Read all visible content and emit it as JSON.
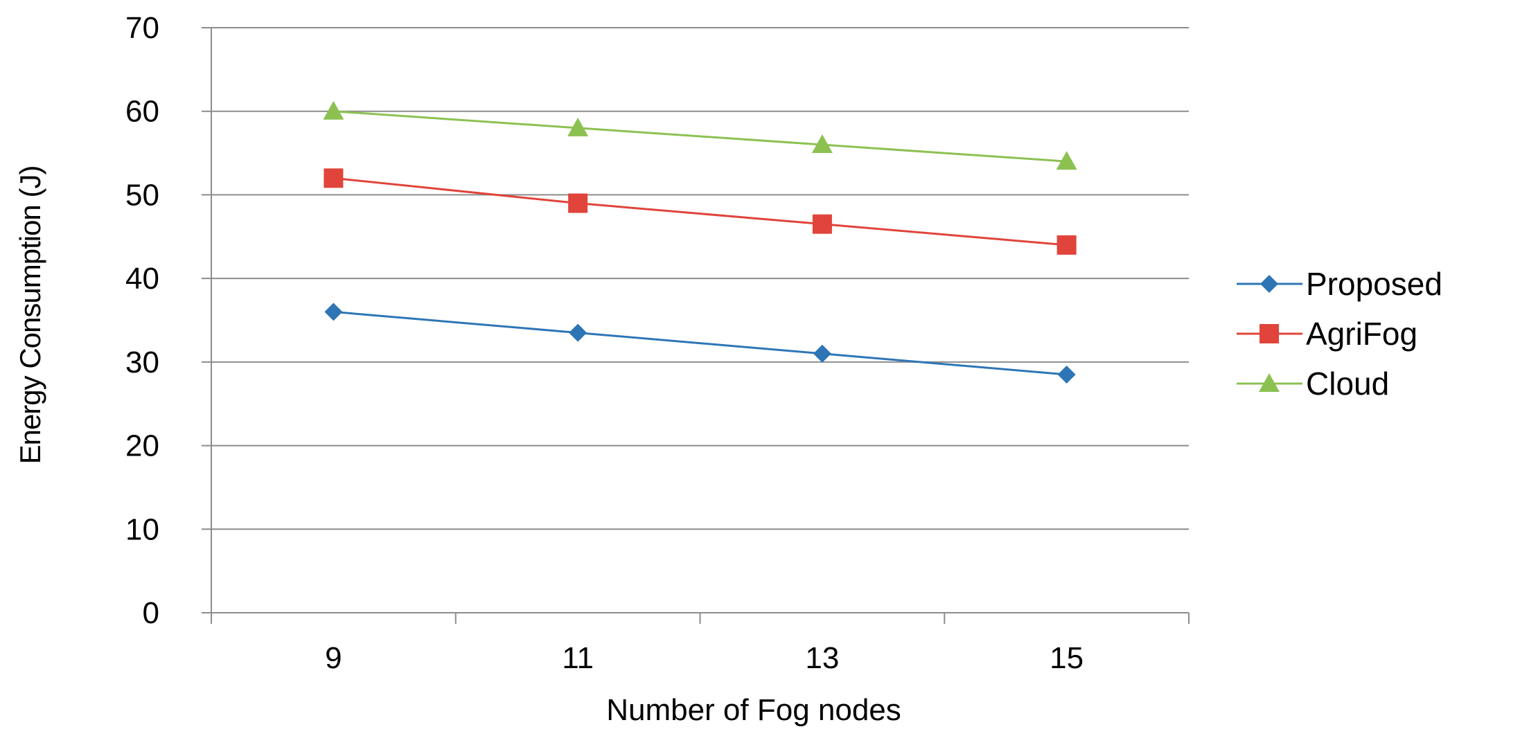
{
  "chart_data": {
    "type": "line",
    "title": "",
    "xlabel": "Number of Fog nodes",
    "ylabel": "Energy Consumption (J)",
    "categories": [
      "9",
      "11",
      "13",
      "15"
    ],
    "ylim": [
      0,
      70
    ],
    "yticks": [
      "0",
      "10",
      "20",
      "30",
      "40",
      "50",
      "60",
      "70"
    ],
    "grid": true,
    "legend_position": "right",
    "series": [
      {
        "name": "Proposed",
        "color": "#2e75b6",
        "marker": "diamond",
        "values": [
          36,
          33.5,
          31,
          28.5
        ]
      },
      {
        "name": "AgriFog",
        "color": "#e0443a",
        "marker": "square",
        "values": [
          52,
          49,
          46.5,
          44
        ]
      },
      {
        "name": "Cloud",
        "color": "#8cc152",
        "marker": "triangle",
        "values": [
          60,
          58,
          56,
          54
        ]
      }
    ]
  }
}
